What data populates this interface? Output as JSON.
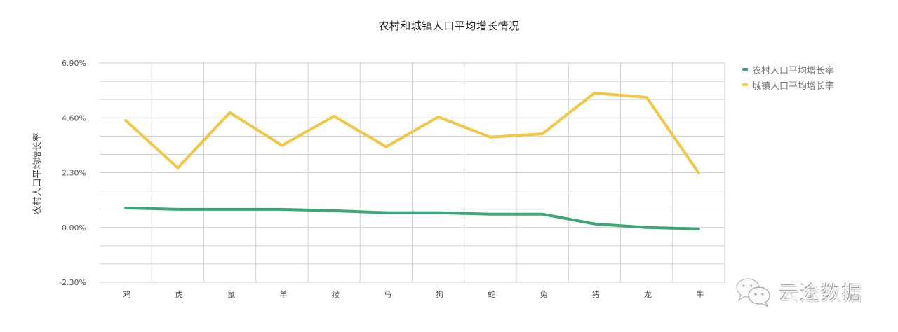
{
  "chart_data": {
    "type": "line",
    "title": "农村和城镇人口平均增长情况",
    "xlabel": "",
    "ylabel": "农村人口平均增长率",
    "categories": [
      "鸡",
      "虎",
      "鼠",
      "羊",
      "猴",
      "马",
      "狗",
      "蛇",
      "兔",
      "猪",
      "龙",
      "牛"
    ],
    "series": [
      {
        "name": "农村人口平均增长率",
        "color": "#3aa876",
        "values": [
          0.82,
          0.76,
          0.76,
          0.76,
          0.7,
          0.62,
          0.62,
          0.56,
          0.56,
          0.15,
          0.0,
          -0.06
        ]
      },
      {
        "name": "城镇人口平均增长率",
        "color": "#f2c744",
        "values": [
          4.49,
          2.5,
          4.82,
          3.44,
          4.67,
          3.38,
          4.64,
          3.79,
          3.93,
          5.64,
          5.46,
          2.29
        ]
      }
    ],
    "ylim": [
      -2.3,
      6.9
    ],
    "yticks": [
      "6.90%",
      "4.60%",
      "2.30%",
      "0.00%",
      "-2.30%"
    ],
    "ytick_values": [
      6.9,
      4.6,
      2.3,
      0.0,
      -2.3
    ],
    "grid": true,
    "legend_position": "right-top",
    "unit": "%"
  },
  "legend": {
    "items": [
      {
        "label": "农村人口平均增长率",
        "color": "#3aa876"
      },
      {
        "label": "城镇人口平均增长率",
        "color": "#f2c744"
      }
    ]
  },
  "watermark": {
    "text": "云途数据",
    "icon": "wechat-icon"
  }
}
